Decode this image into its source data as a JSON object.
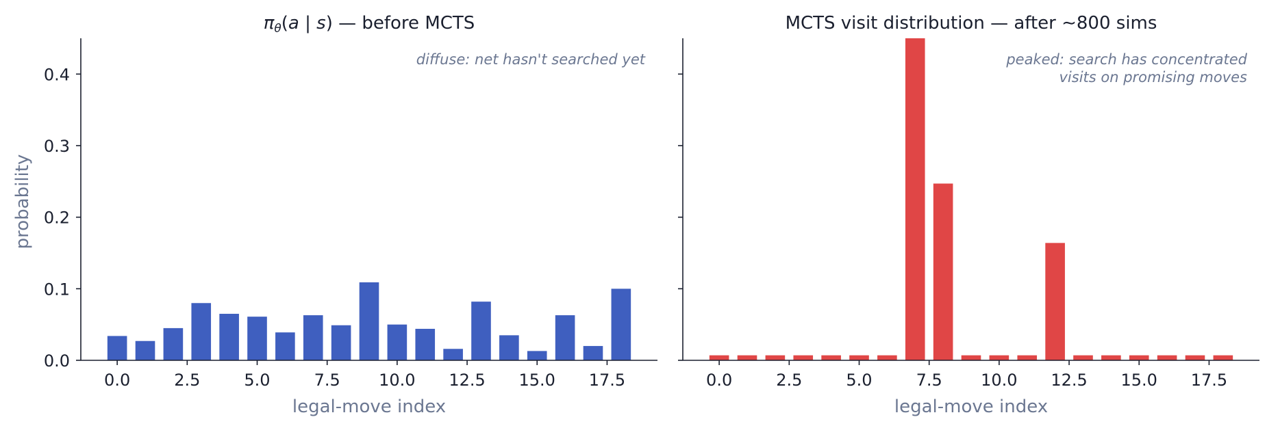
{
  "chart_data": [
    {
      "type": "bar",
      "title_parts": {
        "pi": "π",
        "theta": "θ",
        "open": "(",
        "a": "a",
        "bar": " | ",
        "s": "s",
        "close": ")",
        "rest": "  — before MCTS"
      },
      "xlabel": "legal-move index",
      "ylabel": "probability",
      "annotation": [
        "diffuse: net hasn't searched yet"
      ],
      "color": "#3f5fbf",
      "x": [
        0,
        1,
        2,
        3,
        4,
        5,
        6,
        7,
        8,
        9,
        10,
        11,
        12,
        13,
        14,
        15,
        16,
        17,
        18
      ],
      "values": [
        0.034,
        0.027,
        0.045,
        0.08,
        0.065,
        0.061,
        0.039,
        0.063,
        0.049,
        0.109,
        0.05,
        0.044,
        0.016,
        0.082,
        0.035,
        0.013,
        0.063,
        0.02,
        0.1
      ],
      "xticks": [
        "0.0",
        "2.5",
        "5.0",
        "7.5",
        "10.0",
        "12.5",
        "15.0",
        "17.5"
      ],
      "xtick_values": [
        0,
        2.5,
        5,
        7.5,
        10,
        12.5,
        15,
        17.5
      ],
      "xlim": [
        -1.3,
        19.3
      ],
      "yticks": [
        "0.0",
        "0.1",
        "0.2",
        "0.3",
        "0.4"
      ],
      "ytick_values": [
        0,
        0.1,
        0.2,
        0.3,
        0.4
      ],
      "ylim": [
        0,
        0.45
      ]
    },
    {
      "type": "bar",
      "title": "MCTS visit distribution  — after ∼800 sims",
      "xlabel": "legal-move index",
      "annotation": [
        "peaked: search has concentrated",
        "visits on promising moves"
      ],
      "color": "#e04646",
      "x": [
        0,
        1,
        2,
        3,
        4,
        5,
        6,
        7,
        8,
        9,
        10,
        11,
        12,
        13,
        14,
        15,
        16,
        17,
        18
      ],
      "values": [
        0.007,
        0.007,
        0.007,
        0.007,
        0.007,
        0.007,
        0.007,
        0.45,
        0.247,
        0.007,
        0.007,
        0.007,
        0.164,
        0.007,
        0.007,
        0.007,
        0.007,
        0.007,
        0.007
      ],
      "xticks": [
        "0.0",
        "2.5",
        "5.0",
        "7.5",
        "10.0",
        "12.5",
        "15.0",
        "17.5"
      ],
      "xtick_values": [
        0,
        2.5,
        5,
        7.5,
        10,
        12.5,
        15,
        17.5
      ],
      "xlim": [
        -1.3,
        19.3
      ],
      "yticks": [
        "0.0",
        "0.1",
        "0.2",
        "0.3",
        "0.4"
      ],
      "ytick_values": [
        0,
        0.1,
        0.2,
        0.3,
        0.4
      ],
      "ylim": [
        0,
        0.45
      ]
    }
  ]
}
